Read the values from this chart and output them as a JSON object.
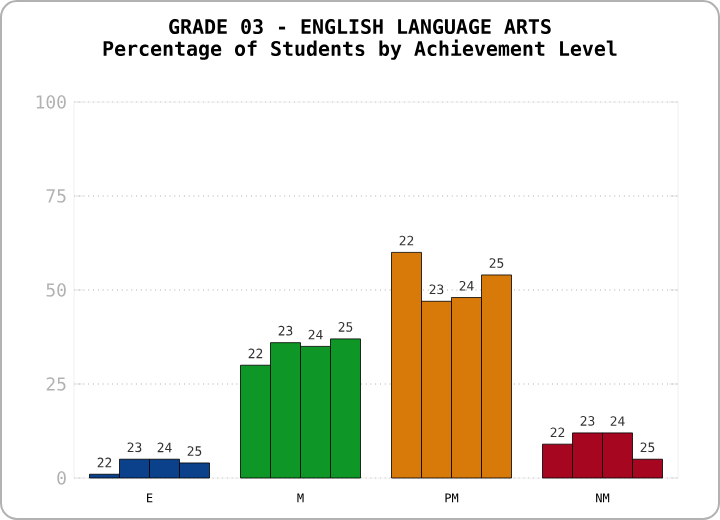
{
  "chart_data": {
    "type": "bar",
    "title": "GRADE 03 - ENGLISH LANGUAGE ARTS",
    "subtitle": "Percentage of Students by Achievement Level",
    "categories": [
      "E",
      "M",
      "PM",
      "NM"
    ],
    "series": [
      {
        "name": "22",
        "colors": [
          "#0a418a",
          "#0e9626",
          "#d87a0a",
          "#a6061f"
        ],
        "values": [
          1,
          30,
          60,
          9
        ]
      },
      {
        "name": "23",
        "colors": [
          "#0a418a",
          "#0e9626",
          "#d87a0a",
          "#a6061f"
        ],
        "values": [
          5,
          36,
          47,
          12
        ]
      },
      {
        "name": "24",
        "colors": [
          "#0a418a",
          "#0e9626",
          "#d87a0a",
          "#a6061f"
        ],
        "values": [
          5,
          35,
          48,
          12
        ]
      },
      {
        "name": "25",
        "colors": [
          "#0a418a",
          "#0e9626",
          "#d87a0a",
          "#a6061f"
        ],
        "values": [
          4,
          37,
          54,
          5
        ]
      }
    ],
    "ylim": [
      0,
      100
    ],
    "yticks": [
      0,
      25,
      50,
      75,
      100
    ],
    "grid": "y"
  }
}
